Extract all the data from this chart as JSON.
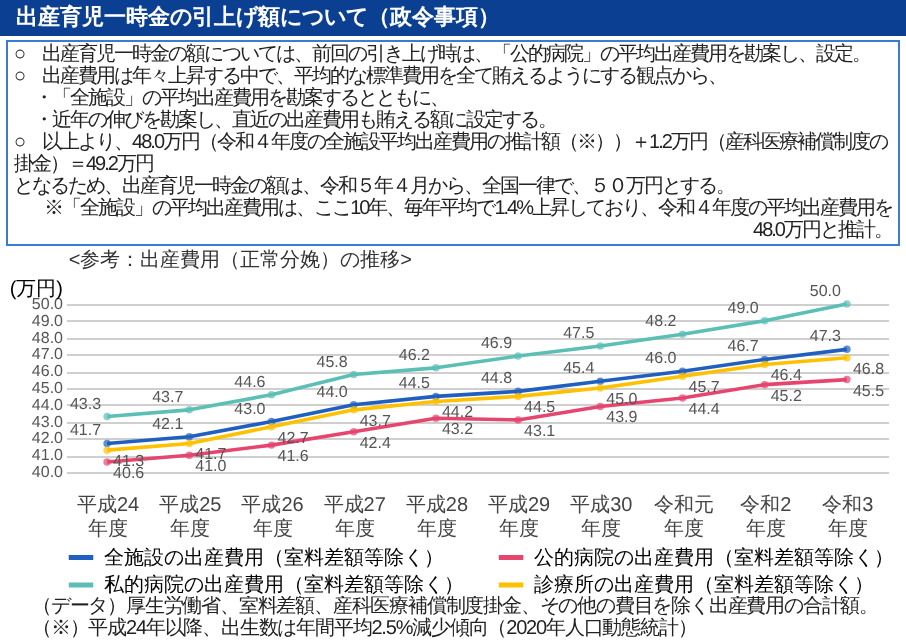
{
  "chart_data": {
    "type": "line",
    "title": "出産育児一時金の引上げ額について（政令事項）",
    "subtitle": "<参考：出産費用（正常分娩）の推移>",
    "annotations": [
      "○　出産育児一時金の額については、前回の引き上げ時は、「公的病院」の平均出産費用を勘案し、設定。",
      "○　出産費用は年々上昇する中で、平均的な標準費用を全て賄えるようにする観点から、",
      "・「全施設」の平均出産費用を勘案するとともに、",
      "・近年の伸びを勘案し、直近の出産費用も賄える額に設定する。",
      "○　以上より、48.0万円（令和４年度の全施設平均出産費用の推計額（※））＋1.2万円（産科医療補償制度の掛金）＝49.2万円",
      "となるため、出産育児一時金の額は、令和５年４月から、全国一律で、５０万円とする。",
      "※「全施設」の平均出産費用は、ここ10年、毎年平均で1.4%上昇しており、令和４年度の平均出産費用を48.0万円と推計。",
      "（データ）厚生労働省、室料差額、産科医療補償制度掛金、その他の費目を除く出産費用の合計額。",
      "（※）平成24年以降、出生数は年間平均2.5%減少傾向（2020年人口動態統計）"
    ],
    "ylabel": "(万円)",
    "categories": [
      "平成24年度",
      "平成25年度",
      "平成26年度",
      "平成27年度",
      "平成28年度",
      "平成29年度",
      "平成30年度",
      "令和元年度",
      "令和2年度",
      "令和3年度"
    ],
    "series": [
      {
        "name": "全施設の出産費用（室料差額等除く）",
        "color": "#1f5fbf",
        "values": [
          41.7,
          42.1,
          43.0,
          44.0,
          44.5,
          44.8,
          45.4,
          46.0,
          46.7,
          47.3
        ],
        "value_labels": [
          "41.7",
          "42.1",
          "43.0",
          "44.0",
          "44.5",
          "44.8",
          "45.4",
          "46.0",
          "46.7",
          "47.3"
        ]
      },
      {
        "name": "公的病院の出産費用（室料差額等除く）",
        "color": "#e6456e",
        "values": [
          40.6,
          41.0,
          41.6,
          42.4,
          43.2,
          43.1,
          43.9,
          44.4,
          45.2,
          45.5
        ],
        "value_labels": [
          "40.6",
          "41.0",
          "41.6",
          "42.4",
          "43.2",
          "43.1",
          "43.9",
          "44.4",
          "45.2",
          "45.5"
        ]
      },
      {
        "name": "私的病院の出産費用（室料差額等除く）",
        "color": "#5bbfb5",
        "values": [
          43.3,
          43.7,
          44.6,
          45.8,
          46.2,
          46.9,
          47.5,
          48.2,
          49.0,
          50.0
        ],
        "value_labels": [
          "43.3",
          "43.7",
          "44.6",
          "45.8",
          "46.2",
          "46.9",
          "47.5",
          "48.2",
          "49.0",
          "50.0"
        ]
      },
      {
        "name": "診療所の出産費用（室料差額等除く）",
        "color": "#ffc000",
        "values": [
          41.3,
          41.7,
          42.7,
          43.7,
          44.2,
          44.5,
          45.0,
          45.7,
          46.4,
          46.8
        ],
        "value_labels": [
          "41.3",
          "41.7",
          "42.7",
          "43.7",
          "44.2",
          "44.5",
          "45.0",
          "45.7",
          "46.4",
          "46.8"
        ]
      }
    ],
    "ylim": [
      40,
      50
    ],
    "yticks": [
      {
        "value": 40,
        "label": "40.0"
      },
      {
        "value": 41,
        "label": "41.0"
      },
      {
        "value": 42,
        "label": "42.0"
      },
      {
        "value": 43,
        "label": "43.0"
      },
      {
        "value": 44,
        "label": "44.0"
      },
      {
        "value": 45,
        "label": "45.0"
      },
      {
        "value": 46,
        "label": "46.0"
      },
      {
        "value": 47,
        "label": "47.0"
      },
      {
        "value": 48,
        "label": "48.0"
      },
      {
        "value": 49,
        "label": "49.0"
      },
      {
        "value": 50,
        "label": "50.0"
      }
    ],
    "grid": "y",
    "legend": "bottom",
    "marker": "circle",
    "line_style": "solid"
  }
}
